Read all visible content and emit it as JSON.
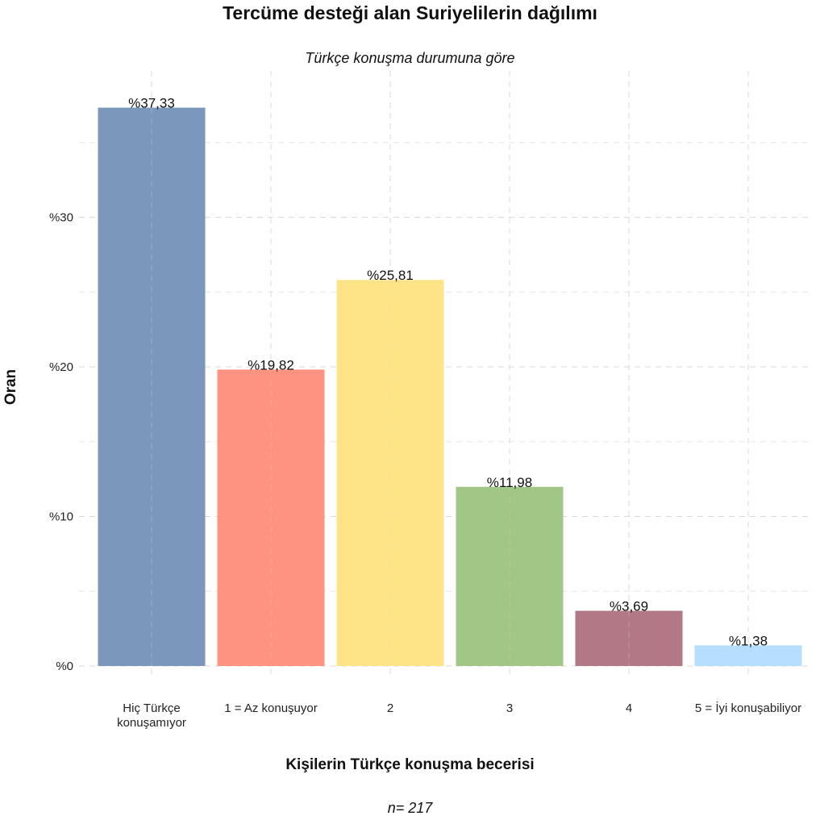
{
  "chart_data": {
    "type": "bar",
    "title": "Tercüme desteği alan Suriyelilerin dağılımı",
    "subtitle": "Türkçe konuşma durumuna göre",
    "xlabel": "Kişilerin Türkçe konuşma becerisi",
    "ylabel": "Oran",
    "caption": "n= 217",
    "categories": [
      [
        "Hiç Türkçe",
        "konuşamıyor"
      ],
      [
        "1 = Az konuşuyor"
      ],
      [
        "2"
      ],
      [
        "3"
      ],
      [
        "4"
      ],
      [
        "5 = İyi konuşabiliyor"
      ]
    ],
    "values": [
      37.33,
      19.82,
      25.81,
      11.98,
      3.69,
      1.38
    ],
    "value_labels": [
      "%37,33",
      "%19,82",
      "%25,81",
      "%11,98",
      "%3,69",
      "%1,38"
    ],
    "colors": [
      "#7b97bb",
      "#ff9381",
      "#ffe387",
      "#a1c685",
      "#b27886",
      "#b6dfff"
    ],
    "yticks": [
      0,
      10,
      20,
      30
    ],
    "ytick_labels": [
      "%0",
      "%10",
      "%20",
      "%30"
    ],
    "ylim": [
      0,
      38
    ],
    "grid": true,
    "legend": "none"
  }
}
